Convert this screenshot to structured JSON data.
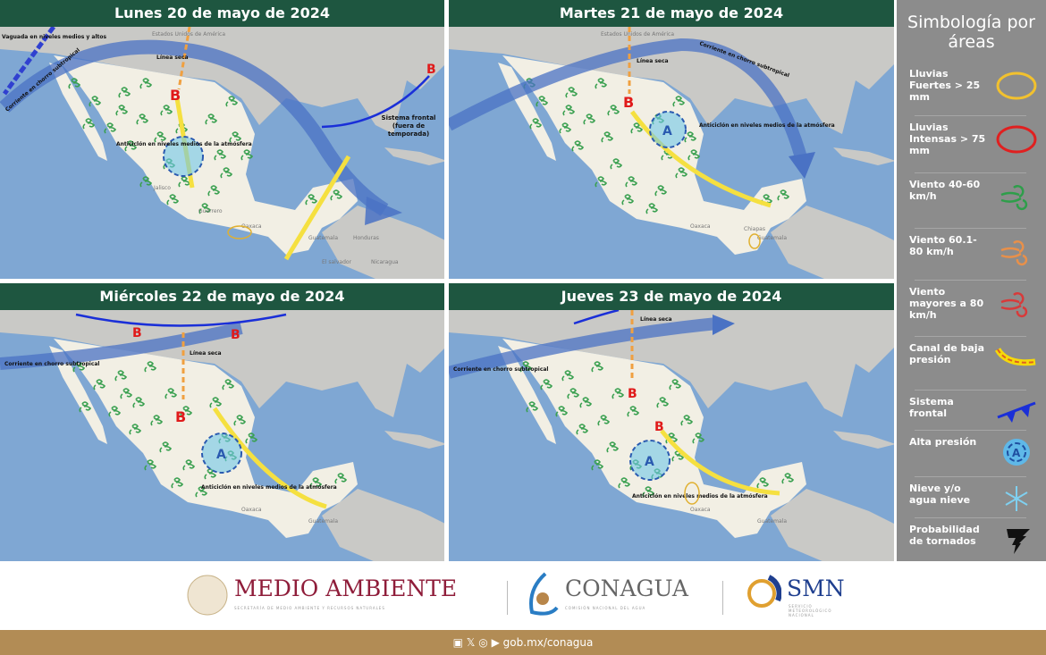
{
  "panels": [
    {
      "title": "Lunes 20 de mayo de 2024",
      "labels": {
        "trough": "Vaguada en niveles medios y altos",
        "jet": "Corriente en chorro subtropical",
        "dryline": "Línea seca",
        "anticyclone": "Anticiclón en niveles medios de la atmósfera",
        "front": "Sistema frontal (fuera de temporada)",
        "low": "B"
      }
    },
    {
      "title": "Martes 21 de mayo de 2024",
      "labels": {
        "jet": "Corriente en chorro subtropical",
        "dryline": "Línea seca",
        "anticyclone": "Anticiclón en niveles medios de la atmósfera",
        "low": "B",
        "high": "A"
      }
    },
    {
      "title": "Miércoles 22 de mayo de 2024",
      "labels": {
        "jet": "Corriente en chorro subtropical",
        "dryline": "Línea seca",
        "anticyclone": "Anticiclón en niveles medios de la atmósfera",
        "low": "B",
        "high": "A"
      }
    },
    {
      "title": "Jueves 23 de mayo de 2024",
      "labels": {
        "jet": "Corriente en chorro subtropical",
        "dryline": "Línea seca",
        "anticyclone": "Anticiclón en niveles medios de la atmósfera",
        "low": "B",
        "high": "A"
      }
    }
  ],
  "geo": {
    "usa": "Estados Unidos de América",
    "guatemala": "Guatemala",
    "honduras": "Honduras",
    "salvador": "El salvador",
    "nicaragua": "Nicaragua",
    "oaxaca": "Oaxaca",
    "guerrero": "Guerrero",
    "jalisco": "Jalisco",
    "chiapas": "Chiapas"
  },
  "legend": {
    "title": "Simbología por áreas",
    "items": [
      {
        "label": "Lluvias Fuertes > 25 mm",
        "icon": "yellow-ellipse",
        "color": "#f2c12e"
      },
      {
        "label": "Lluvias Intensas > 75 mm",
        "icon": "red-ellipse",
        "color": "#e02020"
      },
      {
        "label": "Viento 40-60 km/h",
        "icon": "green-wind",
        "color": "#2e9e4a"
      },
      {
        "label": "Viento 60.1-80 km/h",
        "icon": "orange-wind",
        "color": "#e8904a"
      },
      {
        "label": "Viento mayores a 80 km/h",
        "icon": "red-wind",
        "color": "#d83a3a"
      },
      {
        "label": "Canal de baja presión",
        "icon": "trough-line",
        "color": "#f5d90a"
      },
      {
        "label": "Sistema frontal",
        "icon": "cold-front",
        "color": "#1a2fd8"
      },
      {
        "label": "Alta presión",
        "icon": "high-pressure",
        "color": "#3a86c8"
      },
      {
        "label": "Nieve y/o agua nieve",
        "icon": "snowflake",
        "color": "#7fd0f0"
      },
      {
        "label": "Probabilidad de tornados",
        "icon": "tornado",
        "color": "#111111"
      }
    ]
  },
  "footer": {
    "semarnat": "MEDIO AMBIENTE",
    "semarnat_sub": "SECRETARÍA DE MEDIO AMBIENTE Y RECURSOS NATURALES",
    "conagua": "CONAGUA",
    "conagua_sub": "COMISIÓN NACIONAL DEL AGUA",
    "smn": "SMN",
    "smn_sub": "SERVICIO METEOROLÓGICO NACIONAL",
    "url": "gob.mx/conagua",
    "social": [
      "facebook",
      "x",
      "instagram",
      "youtube"
    ]
  }
}
